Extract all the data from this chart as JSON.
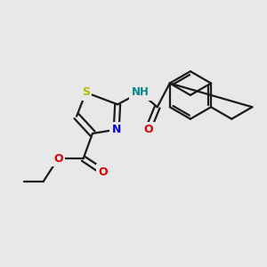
{
  "background_color": "#e8e8e8",
  "bond_color": "#1a1a1a",
  "bond_width": 1.6,
  "sulfur_color": "#b8b800",
  "nitrogen_color": "#0000ee",
  "oxygen_color": "#dd0000",
  "nh_color": "#008888",
  "figsize": [
    3.0,
    3.0
  ],
  "dpi": 100,
  "xlim": [
    0,
    10
  ],
  "ylim": [
    0,
    10
  ]
}
